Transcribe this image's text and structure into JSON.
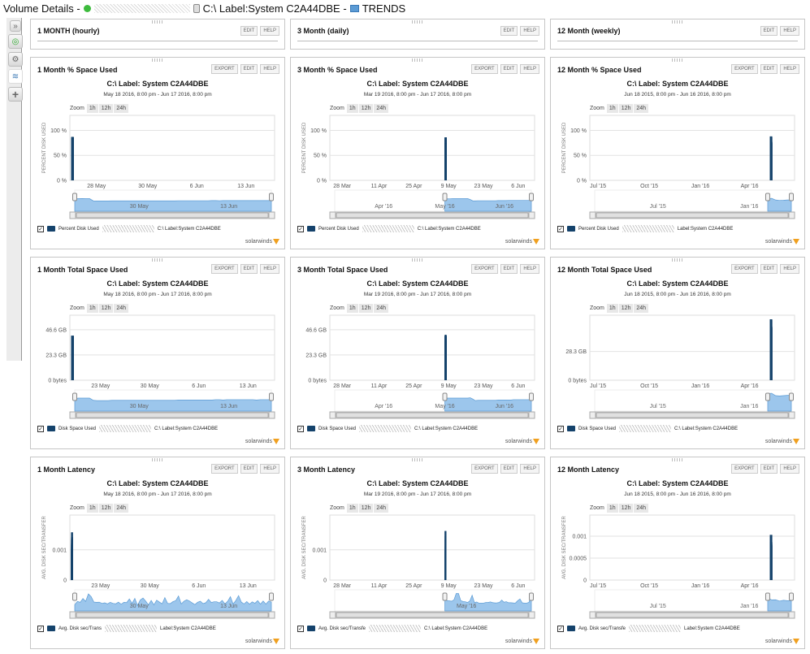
{
  "header": {
    "title_prefix": "Volume Details -",
    "volume_name": "C:\\ Label:System C2A44DBE -",
    "view_name": "TRENDS"
  },
  "sidebar": {
    "items": [
      {
        "name": "collapse",
        "glyph": "»"
      },
      {
        "name": "summary",
        "glyph": "◎"
      },
      {
        "name": "details",
        "glyph": "⚙"
      },
      {
        "name": "trends",
        "glyph": "≋"
      },
      {
        "name": "add",
        "glyph": "+"
      }
    ]
  },
  "buttons": {
    "edit": "EDIT",
    "help": "HELP",
    "export": "EXPORT"
  },
  "zoom": {
    "label": "Zoom",
    "options": [
      "1h",
      "12h",
      "24h"
    ]
  },
  "brand": "solarwinds",
  "headers": [
    {
      "title": "1 MONTH (hourly)"
    },
    {
      "title": "3 Month (daily)"
    },
    {
      "title": "12 Month (weekly)"
    }
  ],
  "chart_data": [
    {
      "id": "m1-pct",
      "type": "bar",
      "panel_title": "1 Month % Space Used",
      "title": "C:\\ Label: System C2A44DBE",
      "subtitle": "May 18 2016, 8:00 pm - Jun 17 2016, 8:00 pm",
      "ylabel": "PERCENT DISK USED",
      "yticks": [
        "100 %",
        "50 %",
        "0 %"
      ],
      "ytick_values": [
        100,
        50,
        0
      ],
      "ylim": [
        0,
        130
      ],
      "xticks": [
        "28 May",
        "30 May",
        "6 Jun",
        "13 Jun"
      ],
      "xtick_pos": [
        0.13,
        0.38,
        0.62,
        0.86
      ],
      "nav_labels": [
        "30 May",
        "13 Jun"
      ],
      "nav_range": [
        0,
        1
      ],
      "legend": "Percent Disk Used",
      "legend_suffix": "C:\\ Label:System C2A44DBE",
      "values": [
        85,
        86,
        87,
        86,
        86,
        71,
        70,
        70,
        70,
        70,
        71,
        71,
        71,
        71,
        71,
        71,
        71,
        71,
        71,
        71,
        71,
        71,
        71,
        71,
        71,
        71,
        71,
        71,
        72,
        72,
        72,
        72,
        72,
        72,
        72,
        72,
        72,
        73,
        73,
        72,
        73,
        73,
        73,
        73,
        73,
        73,
        73,
        73,
        73,
        73,
        73,
        73,
        73,
        73
      ]
    },
    {
      "id": "m3-pct",
      "type": "bar",
      "panel_title": "3 Month % Space Used",
      "title": "C:\\ Label: System C2A44DBE",
      "subtitle": "Mar 19 2016, 8:00 pm - Jun 17 2016, 8:00 pm",
      "ylabel": "PERCENT DISK USED",
      "yticks": [
        "100 %",
        "50 %",
        "0 %"
      ],
      "ytick_values": [
        100,
        50,
        0
      ],
      "ylim": [
        0,
        130
      ],
      "xticks": [
        "28 Mar",
        "11 Apr",
        "25 Apr",
        "9 May",
        "23 May",
        "6 Jun"
      ],
      "xtick_pos": [
        0.06,
        0.24,
        0.41,
        0.58,
        0.75,
        0.92
      ],
      "data_start": 0.56,
      "nav_labels": [
        "Apr '16",
        "May '16",
        "Jun '16"
      ],
      "nav_range": [
        0.56,
        1
      ],
      "legend": "Percent Disk Used",
      "legend_suffix": "C:\\ Label:System C2A44DBE",
      "values": [
        85,
        85,
        85,
        86,
        86,
        86,
        86,
        86,
        86,
        86,
        80,
        71,
        71,
        72,
        72,
        72,
        72,
        72,
        72,
        72,
        72,
        73,
        73,
        73,
        73,
        74,
        74,
        74,
        74,
        74,
        74,
        74,
        74,
        74,
        74
      ]
    },
    {
      "id": "m12-pct",
      "type": "bar",
      "panel_title": "12 Month % Space Used",
      "title": "C:\\ Label: System C2A44DBE",
      "subtitle": "Jun 18 2015, 8:00 pm - Jun 16 2016, 8:00 pm",
      "ylabel": "PERCENT DISK USED",
      "yticks": [
        "100 %",
        "50 %",
        "0 %"
      ],
      "ytick_values": [
        100,
        50,
        0
      ],
      "ylim": [
        0,
        130
      ],
      "xticks": [
        "Jul '15",
        "Oct '15",
        "Jan '16",
        "Apr '16"
      ],
      "xtick_pos": [
        0.04,
        0.29,
        0.54,
        0.78
      ],
      "data_start": 0.88,
      "nav_labels": [
        "Jul '15",
        "Jan '16"
      ],
      "nav_range": [
        0.88,
        1
      ],
      "legend": "Percent Disk Used",
      "legend_suffix": "Label:System C2A44DBE",
      "values": [
        86,
        88,
        77,
        74,
        75,
        77,
        77
      ]
    },
    {
      "id": "m1-total",
      "type": "bar",
      "panel_title": "1 Month Total Space Used",
      "title": "C:\\ Label: System C2A44DBE",
      "subtitle": "May 18 2016, 8:00 pm - Jun 17 2016, 8:00 pm",
      "ylabel": "",
      "yticks": [
        "46.6 GB",
        "23.3 GB",
        "0 bytes"
      ],
      "ytick_values": [
        46.6,
        23.3,
        0
      ],
      "ylim": [
        0,
        60
      ],
      "xticks": [
        "23 May",
        "30 May",
        "6 Jun",
        "13 Jun"
      ],
      "xtick_pos": [
        0.15,
        0.39,
        0.63,
        0.87
      ],
      "nav_labels": [
        "30 May",
        "13 Jun"
      ],
      "nav_range": [
        0,
        1
      ],
      "legend": "Disk Space Used",
      "legend_suffix": "C:\\ Label:System C2A44DBE",
      "values": [
        40,
        41,
        41,
        41,
        41,
        34,
        33,
        33,
        33,
        33,
        34,
        34,
        34,
        34,
        34,
        34,
        34,
        34,
        34,
        34,
        34,
        34,
        34,
        34,
        34,
        34,
        34,
        34,
        35,
        35,
        35,
        35,
        35,
        35,
        35,
        35,
        35,
        35,
        36,
        36,
        35,
        36,
        36,
        36,
        36,
        36,
        36,
        36,
        36,
        35,
        36,
        36,
        36,
        36
      ]
    },
    {
      "id": "m3-total",
      "type": "bar",
      "panel_title": "3 Month Total Space Used",
      "title": "C:\\ Label: System C2A44DBE",
      "subtitle": "Mar 19 2016, 8:00 pm - Jun 17 2016, 8:00 pm",
      "ylabel": "",
      "yticks": [
        "46.6 GB",
        "23.3 GB",
        "0 bytes"
      ],
      "ytick_values": [
        46.6,
        23.3,
        0
      ],
      "ylim": [
        0,
        60
      ],
      "xticks": [
        "28 Mar",
        "11 Apr",
        "25 Apr",
        "9 May",
        "23 May",
        "6 Jun"
      ],
      "xtick_pos": [
        0.06,
        0.24,
        0.41,
        0.58,
        0.75,
        0.92
      ],
      "data_start": 0.56,
      "nav_labels": [
        "Apr '16",
        "May '16",
        "Jun '16"
      ],
      "nav_range": [
        0.56,
        1
      ],
      "legend": "Disk Space Used",
      "legend_suffix": "C:\\ Label:System C2A44DBE",
      "values": [
        40,
        41,
        41,
        41,
        41,
        41,
        41,
        41,
        41,
        41,
        42,
        38,
        33,
        34,
        34,
        34,
        34,
        34,
        34,
        34,
        34,
        35,
        35,
        35,
        35,
        35,
        35,
        36,
        36,
        36,
        36,
        36,
        36,
        36,
        36
      ]
    },
    {
      "id": "m12-total",
      "type": "bar",
      "panel_title": "12 Month Total Space Used",
      "title": "C:\\ Label: System C2A44DBE",
      "subtitle": "Jun 18 2015, 8:00 pm - Jun 16 2016, 8:00 pm",
      "ylabel": "",
      "yticks": [
        "28.3 GB",
        "0 bytes"
      ],
      "ytick_values": [
        28.3,
        0
      ],
      "ylim": [
        0,
        64
      ],
      "xticks": [
        "Jul '15",
        "Oct '15",
        "Jan '16",
        "Apr '16"
      ],
      "xtick_pos": [
        0.04,
        0.29,
        0.54,
        0.78
      ],
      "data_start": 0.88,
      "nav_labels": [
        "Jul '15",
        "Jan '16"
      ],
      "nav_range": [
        0.88,
        1
      ],
      "legend": "Disk Space Used",
      "legend_suffix": "C:\\ Label:System C2A44DBE",
      "values": [
        59,
        60,
        52,
        51,
        52,
        53,
        53
      ]
    },
    {
      "id": "m1-lat",
      "type": "bar",
      "panel_title": "1 Month Latency",
      "title": "C:\\ Label: System C2A44DBE",
      "subtitle": "May 18 2016, 8:00 pm - Jun 17 2016, 8:00 pm",
      "ylabel": "AVG. DISK SEC/TRANSFER",
      "yticks": [
        "0.001",
        "0"
      ],
      "ytick_values": [
        0.001,
        0
      ],
      "ylim": [
        0,
        0.00215
      ],
      "xticks": [
        "23 May",
        "30 May",
        "6 Jun",
        "13 Jun"
      ],
      "xtick_pos": [
        0.15,
        0.39,
        0.63,
        0.87
      ],
      "nav_labels": [
        "30 May",
        "13 Jun"
      ],
      "nav_range": [
        0,
        1
      ],
      "legend": "Avg. Disk sec/Trans",
      "legend_suffix": "Label:System C2A44DBE",
      "values": [
        0.00058,
        0.00088,
        0.0008,
        0.00115,
        0.00088,
        0.00158,
        0.00133,
        0.00082,
        0.0008,
        0.00081,
        0.0007,
        0.00075,
        0.00065,
        0.0008,
        0.0007,
        0.00066,
        0.00081,
        0.00062,
        0.0008,
        0.00077,
        0.00111,
        0.0007,
        0.00116,
        0.00051,
        0.00102,
        0.0012,
        0.0009,
        0.00056,
        0.00097,
        0.00056,
        0.001,
        0.00082,
        0.00066,
        0.00123,
        0.0007,
        0.00068,
        0.00087,
        0.00095,
        0.00138,
        0.00065,
        0.0009,
        0.00103,
        0.00092,
        0.00075,
        0.00059,
        0.0008,
        0.0009,
        0.00068,
        0.00076,
        0.00108,
        0.00078,
        0.00085,
        0.00085,
        0.00074,
        0.00098,
        0.00065,
        0.00089,
        0.00132,
        0.00064,
        0.00097,
        0.00142,
        0.00082,
        0.00065,
        0.00087,
        0.00063,
        0.00084,
        0.00071,
        0.00096,
        0.00063,
        0.00092,
        0.00063,
        0.00092,
        0.00082
      ],
      "area_nav": true
    },
    {
      "id": "m3-lat",
      "type": "bar",
      "panel_title": "3 Month Latency",
      "title": "C:\\ Label: System C2A44DBE",
      "subtitle": "Mar 19 2016, 8:00 pm - Jun 17 2016, 8:00 pm",
      "ylabel": "AVG. DISK SEC/TRANSFER",
      "yticks": [
        "0.001",
        "0"
      ],
      "ytick_values": [
        0.001,
        0
      ],
      "ylim": [
        0,
        0.00215
      ],
      "xticks": [
        "28 Mar",
        "11 Apr",
        "25 Apr",
        "9 May",
        "23 May",
        "6 Jun"
      ],
      "xtick_pos": [
        0.06,
        0.24,
        0.41,
        0.58,
        0.75,
        0.92
      ],
      "data_start": 0.56,
      "nav_labels": [
        "May '16"
      ],
      "nav_range": [
        0.56,
        1
      ],
      "legend": "Avg. Disk sec/Transfe",
      "legend_suffix": "C:\\ Label:System C2A44DBE",
      "values": [
        0.00135,
        0.00095,
        0.00093,
        0.0009,
        0.00102,
        0.00162,
        0.00162,
        0.00095,
        0.00088,
        0.00085,
        0.00078,
        0.00093,
        0.00145,
        0.00078,
        0.00083,
        0.00072,
        0.00073,
        0.00073,
        0.00078,
        0.00078,
        0.00084,
        0.00077,
        0.00074,
        0.00075,
        0.00079,
        0.00101,
        0.00081,
        0.00086,
        0.00076,
        0.00076,
        0.00074,
        0.00073,
        0.00095,
        0.00111,
        0.00075,
        0.00073,
        0.00073,
        0.0008,
        0.00162
      ],
      "area_nav": true
    },
    {
      "id": "m12-lat",
      "type": "bar",
      "panel_title": "12 Month Latency",
      "title": "C:\\ Label: System C2A44DBE",
      "subtitle": "Jun 18 2015, 8:00 pm - Jun 16 2016, 8:00 pm",
      "ylabel": "AVG. DISK SEC/TRANSFER",
      "yticks": [
        "0.001",
        "0.0005",
        "0"
      ],
      "ytick_values": [
        0.001,
        0.0005,
        0
      ],
      "ylim": [
        0,
        0.00148
      ],
      "xticks": [
        "Jul '15",
        "Oct '15",
        "Jan '16",
        "Apr '16"
      ],
      "xtick_pos": [
        0.04,
        0.29,
        0.54,
        0.78
      ],
      "data_start": 0.88,
      "nav_labels": [
        "Jul '15",
        "Jan '16"
      ],
      "nav_range": [
        0.88,
        1
      ],
      "legend": "Avg. Disk sec/Transfe",
      "legend_suffix": "Label:System C2A44DBE",
      "values": [
        0.00103,
        0.00086,
        0.00087,
        0.00077,
        0.00083,
        0.0008,
        0.0008
      ]
    }
  ]
}
